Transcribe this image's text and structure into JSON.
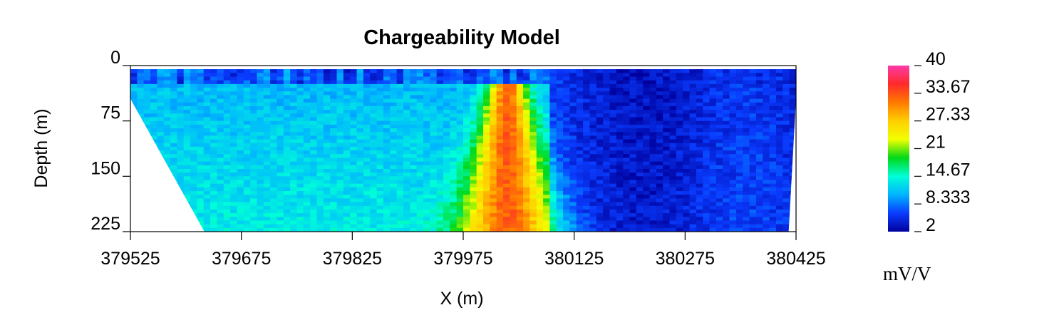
{
  "chart_data": {
    "type": "heatmap",
    "title": "Chargeability Model",
    "xlabel": "X (m)",
    "ylabel": "Depth (m)",
    "x_ticks": [
      "379525",
      "379675",
      "379825",
      "379975",
      "380125",
      "380275",
      "380425"
    ],
    "y_ticks": [
      "0",
      "75",
      "150",
      "225"
    ],
    "xlim": [
      379525,
      380425
    ],
    "ylim": [
      0,
      225
    ],
    "y_inverted": true,
    "colorbar": {
      "ticks": [
        "40",
        "33.67",
        "27.33",
        "21",
        "14.67",
        "8.333",
        "2"
      ],
      "range": [
        2,
        40
      ],
      "units": "mV/V",
      "colors": [
        "#ff3aa8",
        "#ff2a2a",
        "#ff7a00",
        "#ffcf00",
        "#f2ff00",
        "#00d818",
        "#00ffd8",
        "#00b4ff",
        "#0a3cff",
        "#00009c"
      ]
    },
    "section_outline": {
      "top": [
        [
          379525,
          5
        ],
        [
          380425,
          5
        ]
      ],
      "left_flank": [
        [
          379525,
          45
        ],
        [
          379625,
          225
        ]
      ],
      "right_flank": [
        [
          380425,
          45
        ],
        [
          380415,
          225
        ],
        [
          380315,
          225
        ]
      ]
    },
    "anomaly": {
      "center_x": 380035,
      "depth_range": [
        20,
        225
      ],
      "peak_value": 33
    }
  }
}
